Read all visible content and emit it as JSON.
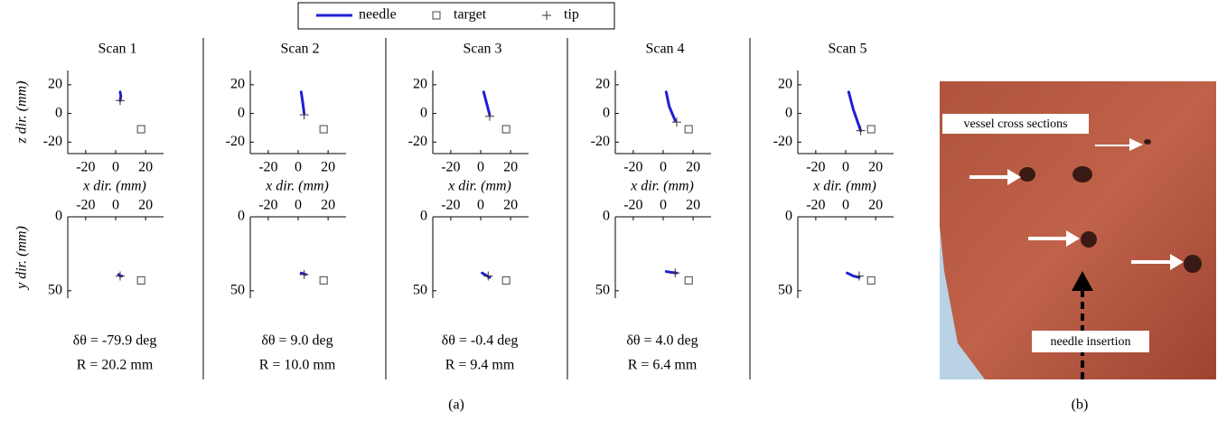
{
  "chart_data": [
    {
      "type": "line",
      "title": "Scan  1",
      "xlabel": "x dir. (mm)",
      "ylabel": "z dir. (mm)",
      "xlim": [
        -32,
        32
      ],
      "ylim": [
        -28,
        30
      ],
      "xticks": [
        -20,
        0,
        20
      ],
      "yticks": [
        -20,
        0,
        20
      ],
      "series": [
        {
          "color": "#1f1fd6",
          "marker": "line",
          "x": [
            3,
            3.5,
            3
          ],
          "values": [
            15,
            12,
            9
          ]
        },
        {
          "color": "#444444",
          "marker": "square",
          "x": [
            17
          ],
          "values": [
            -11
          ]
        },
        {
          "color": "#333333",
          "marker": "plus",
          "x": [
            3
          ],
          "values": [
            9
          ]
        }
      ]
    },
    {
      "type": "line",
      "title": "Scan  2",
      "xlabel": "x dir. (mm)",
      "xlim": [
        -32,
        32
      ],
      "ylim": [
        -28,
        30
      ],
      "xticks": [
        -20,
        0,
        20
      ],
      "yticks": [
        -20,
        0,
        20
      ],
      "series": [
        {
          "color": "#1f1fd6",
          "marker": "line",
          "x": [
            2,
            3,
            4
          ],
          "values": [
            15,
            8,
            0
          ]
        },
        {
          "color": "#444444",
          "marker": "square",
          "x": [
            17
          ],
          "values": [
            -11
          ]
        },
        {
          "color": "#333333",
          "marker": "plus",
          "x": [
            4
          ],
          "values": [
            -1
          ]
        }
      ]
    },
    {
      "type": "line",
      "title": "Scan  3",
      "xlabel": "x dir. (mm)",
      "xlim": [
        -32,
        32
      ],
      "ylim": [
        -28,
        30
      ],
      "xticks": [
        -20,
        0,
        20
      ],
      "yticks": [
        -20,
        0,
        20
      ],
      "series": [
        {
          "color": "#1f1fd6",
          "marker": "line",
          "x": [
            2,
            4,
            6
          ],
          "values": [
            15,
            7,
            -1
          ]
        },
        {
          "color": "#444444",
          "marker": "square",
          "x": [
            17
          ],
          "values": [
            -11
          ]
        },
        {
          "color": "#333333",
          "marker": "plus",
          "x": [
            6
          ],
          "values": [
            -2
          ]
        }
      ]
    },
    {
      "type": "line",
      "title": "Scan  4",
      "xlabel": "x dir. (mm)",
      "xlim": [
        -32,
        32
      ],
      "ylim": [
        -28,
        30
      ],
      "xticks": [
        -20,
        0,
        20
      ],
      "yticks": [
        -20,
        0,
        20
      ],
      "series": [
        {
          "color": "#1f1fd6",
          "marker": "line",
          "x": [
            2,
            4,
            8
          ],
          "values": [
            15,
            5,
            -5
          ]
        },
        {
          "color": "#444444",
          "marker": "square",
          "x": [
            17
          ],
          "values": [
            -11
          ]
        },
        {
          "color": "#333333",
          "marker": "plus",
          "x": [
            9
          ],
          "values": [
            -6
          ]
        }
      ]
    },
    {
      "type": "line",
      "title": "Scan  5",
      "xlabel": "x dir. (mm)",
      "xlim": [
        -32,
        32
      ],
      "ylim": [
        -28,
        30
      ],
      "xticks": [
        -20,
        0,
        20
      ],
      "yticks": [
        -20,
        0,
        20
      ],
      "series": [
        {
          "color": "#1f1fd6",
          "marker": "line",
          "x": [
            2,
            5,
            10
          ],
          "values": [
            15,
            3,
            -12
          ]
        },
        {
          "color": "#444444",
          "marker": "square",
          "x": [
            17
          ],
          "values": [
            -11
          ]
        },
        {
          "color": "#333333",
          "marker": "plus",
          "x": [
            10
          ],
          "values": [
            -12
          ]
        }
      ]
    },
    {
      "type": "line",
      "ylabel": "y dir. (mm)",
      "xlim": [
        -32,
        32
      ],
      "ylim": [
        0,
        55
      ],
      "y_inverted": true,
      "xaxis_top": true,
      "xticks": [
        -20,
        0,
        20
      ],
      "yticks": [
        0,
        50
      ],
      "annotations": [
        "δθ = -79.9 deg",
        "R  = 20.2 mm"
      ],
      "series": [
        {
          "color": "#1f1fd6",
          "marker": "line",
          "x": [
            2,
            3,
            4
          ],
          "values": [
            39,
            40,
            40
          ]
        },
        {
          "color": "#444444",
          "marker": "square",
          "x": [
            17
          ],
          "values": [
            43
          ]
        },
        {
          "color": "#333333",
          "marker": "plus",
          "x": [
            3
          ],
          "values": [
            40
          ]
        }
      ]
    },
    {
      "type": "line",
      "xlim": [
        -32,
        32
      ],
      "ylim": [
        0,
        55
      ],
      "y_inverted": true,
      "xaxis_top": true,
      "xticks": [
        -20,
        0,
        20
      ],
      "yticks": [
        0,
        50
      ],
      "annotations": [
        "δθ = 9.0 deg",
        "R  = 10.0 mm"
      ],
      "series": [
        {
          "color": "#1f1fd6",
          "marker": "line",
          "x": [
            2,
            3.5,
            5
          ],
          "values": [
            38,
            38.5,
            39
          ]
        },
        {
          "color": "#444444",
          "marker": "square",
          "x": [
            17
          ],
          "values": [
            43
          ]
        },
        {
          "color": "#333333",
          "marker": "plus",
          "x": [
            4
          ],
          "values": [
            39
          ]
        }
      ]
    },
    {
      "type": "line",
      "xlim": [
        -32,
        32
      ],
      "ylim": [
        0,
        55
      ],
      "y_inverted": true,
      "xaxis_top": true,
      "xticks": [
        -20,
        0,
        20
      ],
      "yticks": [
        0,
        50
      ],
      "annotations": [
        "δθ = -0.4 deg",
        "R  = 9.4 mm"
      ],
      "series": [
        {
          "color": "#1f1fd6",
          "marker": "line",
          "x": [
            1,
            3.5,
            6
          ],
          "values": [
            38,
            39.5,
            41
          ]
        },
        {
          "color": "#444444",
          "marker": "square",
          "x": [
            17
          ],
          "values": [
            43
          ]
        },
        {
          "color": "#333333",
          "marker": "plus",
          "x": [
            5
          ],
          "values": [
            40
          ]
        }
      ]
    },
    {
      "type": "line",
      "xlim": [
        -32,
        32
      ],
      "ylim": [
        0,
        55
      ],
      "y_inverted": true,
      "xaxis_top": true,
      "xticks": [
        -20,
        0,
        20
      ],
      "yticks": [
        0,
        50
      ],
      "annotations": [
        "δθ = 4.0 deg",
        "R  = 6.4 mm"
      ],
      "series": [
        {
          "color": "#1f1fd6",
          "marker": "line",
          "x": [
            2,
            5,
            9
          ],
          "values": [
            37,
            37.5,
            38
          ]
        },
        {
          "color": "#444444",
          "marker": "square",
          "x": [
            17
          ],
          "values": [
            43
          ]
        },
        {
          "color": "#333333",
          "marker": "plus",
          "x": [
            8
          ],
          "values": [
            38
          ]
        }
      ]
    },
    {
      "type": "line",
      "xlim": [
        -32,
        32
      ],
      "ylim": [
        0,
        55
      ],
      "y_inverted": true,
      "xaxis_top": true,
      "xticks": [
        -20,
        0,
        20
      ],
      "yticks": [
        0,
        50
      ],
      "series": [
        {
          "color": "#1f1fd6",
          "marker": "line",
          "x": [
            1,
            5,
            9
          ],
          "values": [
            38,
            40,
            41
          ]
        },
        {
          "color": "#444444",
          "marker": "square",
          "x": [
            17
          ],
          "values": [
            43
          ]
        },
        {
          "color": "#333333",
          "marker": "plus",
          "x": [
            9
          ],
          "values": [
            40
          ]
        }
      ]
    }
  ],
  "legend": [
    {
      "label": "needle",
      "color": "#1f1fd6",
      "marker": "line"
    },
    {
      "label": "target",
      "color": "#444444",
      "marker": "square"
    },
    {
      "label": "tip",
      "color": "#333333",
      "marker": "plus"
    }
  ],
  "figure_labels": [
    "(a)",
    "(b)"
  ],
  "photo": {
    "annotations": [
      "vessel cross sections",
      "needle insertion"
    ]
  }
}
